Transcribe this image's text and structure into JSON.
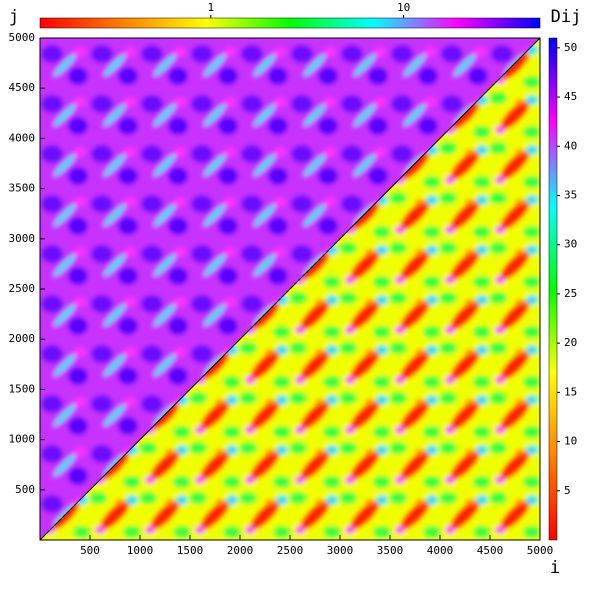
{
  "chart_data": {
    "type": "heatmap",
    "x_label": "i",
    "y_label": "j",
    "xlim": [
      0,
      5000
    ],
    "xticks": [
      500,
      1000,
      1500,
      2000,
      2500,
      3000,
      3500,
      4000,
      4500,
      5000
    ],
    "ylim": [
      0,
      5000
    ],
    "yticks": [
      500,
      1000,
      1500,
      2000,
      2500,
      3000,
      3500,
      4000,
      4500,
      5000
    ],
    "colormap": [
      "#ff0000",
      "#ff8000",
      "#ffff00",
      "#00ff00",
      "#00ffff",
      "#ff00ff",
      "#0000ff"
    ],
    "colorbar": {
      "label": "Dij",
      "lim": [
        0,
        51
      ],
      "ticks": [
        5,
        10,
        15,
        20,
        25,
        30,
        35,
        40,
        45,
        50
      ]
    },
    "top_colorbar": {
      "lim": [
        0.13,
        51
      ],
      "ticks": [
        1,
        10
      ],
      "log": true
    }
  }
}
